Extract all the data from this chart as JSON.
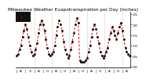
{
  "title": "Milwaukee Weather Evapotranspiration per Day (Inches)",
  "title_fontsize": 4.2,
  "background_color": "#ffffff",
  "plot_bg_color": "#ffffff",
  "line_color": "#dd0000",
  "marker_color": "#000000",
  "grid_color": "#bbbbbb",
  "legend_bg": "#222222",
  "y_values": [
    0.05,
    0.06,
    0.08,
    0.1,
    0.14,
    0.17,
    0.2,
    0.18,
    0.14,
    0.1,
    0.07,
    0.05,
    0.06,
    0.08,
    0.11,
    0.16,
    0.2,
    0.22,
    0.2,
    0.17,
    0.13,
    0.09,
    0.06,
    0.05,
    0.06,
    0.07,
    0.1,
    0.15,
    0.19,
    0.22,
    0.2,
    0.17,
    0.12,
    0.08,
    0.06,
    0.04,
    0.05,
    0.08,
    0.12,
    0.16,
    0.2,
    0.23,
    0.21,
    0.03,
    0.02,
    0.02,
    0.02,
    0.03,
    0.04,
    0.07,
    0.1,
    0.14,
    0.18,
    0.2,
    0.18,
    0.14,
    0.11,
    0.07,
    0.05,
    0.04,
    0.05,
    0.07,
    0.09,
    0.13,
    0.16,
    0.19,
    0.17,
    0.15,
    0.13,
    0.16,
    0.19,
    0.21,
    0.17,
    0.13,
    0.09,
    0.07,
    0.06,
    0.05
  ],
  "vline_positions": [
    12,
    24,
    36,
    48,
    60,
    72
  ],
  "ylim": [
    -0.005,
    0.26
  ],
  "ytick_values": [
    0.0,
    0.05,
    0.1,
    0.15,
    0.2,
    0.25
  ],
  "ytick_labels": [
    ".00",
    ".05",
    ".10",
    ".15",
    ".20",
    ".25"
  ],
  "ylabel_fontsize": 3.2,
  "xlabel_fontsize": 3.0,
  "n_points": 78
}
